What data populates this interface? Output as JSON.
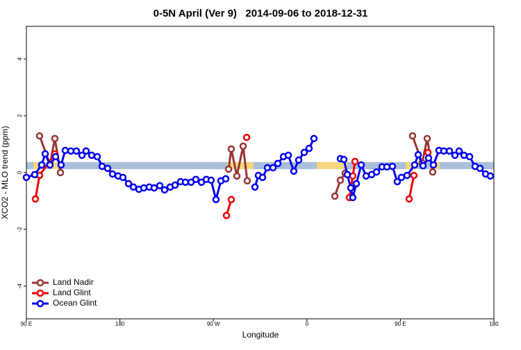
{
  "chart_data": {
    "type": "line",
    "title": "0-5N April (Ver 9)   2014-09-06 to 2018-12-31",
    "x_label": "Longitude",
    "y_label": "XCO2 - MLO trend (ppm)",
    "xlim": [
      90,
      540
    ],
    "xticks": [
      {
        "value": 90,
        "label": "90 E"
      },
      180,
      {
        "value": 270,
        "label": "90 W"
      },
      {
        "value": 360,
        "label": "0"
      },
      {
        "value": 450,
        "label": "90 E"
      },
      {
        "value": 540,
        "label": "180"
      }
    ],
    "ylim": [
      -5.15,
      5.15
    ],
    "yticks": [
      -4,
      -2,
      0,
      2,
      4
    ],
    "legend": "bottom-left",
    "band": {
      "ylim": [
        0.12,
        0.37
      ],
      "color": "#a9bfdc",
      "highlight_color": "#f5d77e",
      "highlights": [
        [
          96.7,
          103.4
        ],
        [
          114.7,
          121.4
        ],
        [
          283.2,
          308.6
        ],
        [
          369.5,
          398.9
        ],
        [
          455.0,
          465.8
        ],
        [
          479.1,
          487.8
        ]
      ]
    },
    "series": [
      {
        "name": "Land Nadir",
        "color": "#993333",
        "x": [
          102.7,
          112.7,
          117.4,
          122.8,
          200,
          284.6,
          287.2,
          292.6,
          298.6,
          302.6,
          350,
          386.9,
          392.2,
          396.9,
          430,
          461.7,
          470.9,
          475.8,
          481.1
        ],
        "values": [
          1.29,
          0.29,
          1.2,
          0.0,
          null,
          0.12,
          0.83,
          -0.12,
          0.93,
          -0.29,
          null,
          -0.83,
          -0.27,
          -0.02,
          null,
          1.29,
          0.34,
          1.2,
          0.02
        ]
      },
      {
        "name": "Land Glint",
        "color": "#ee0000",
        "x": [
          98.7,
          102.7,
          117.4,
          200,
          282.6,
          287.2,
          295,
          302.0,
          350,
          400.9,
          404.2,
          406.3,
          430,
          458.4,
          463.0,
          470,
          476.5
        ],
        "values": [
          -0.93,
          -0.1,
          0.66,
          null,
          -1.51,
          -0.95,
          null,
          1.24,
          null,
          -0.88,
          -0.12,
          0.39,
          null,
          -0.93,
          -0.1,
          null,
          0.71
        ]
      },
      {
        "name": "Ocean Glint",
        "color": "#0000ee",
        "x": [
          90.0,
          98.0,
          104.7,
          108.1,
          112.7,
          118.1,
          123.4,
          127.4,
          132.8,
          138.1,
          143.5,
          147.5,
          152.8,
          158.2,
          162.9,
          168.2,
          172.9,
          178.3,
          182.9,
          188.3,
          193.0,
          198.3,
          203.0,
          208.3,
          213.0,
          218.4,
          223.0,
          228.4,
          233.1,
          238.4,
          243.1,
          248.5,
          253.1,
          258.5,
          263.2,
          267.8,
          272.5,
          277.2,
          281.9,
          300,
          310.0,
          313.3,
          317.3,
          322.0,
          327.4,
          332.0,
          337.4,
          342.1,
          347.4,
          352.1,
          357.4,
          362.1,
          366.8,
          380,
          392.2,
          395.6,
          398.9,
          402.2,
          404.2,
          407.6,
          412.3,
          417.0,
          422.3,
          427.0,
          432.3,
          437.0,
          442.3,
          447.0,
          451.0,
          456.4,
          463.7,
          467.1,
          471.8,
          477.1,
          481.8,
          487.1,
          491.8,
          497.2,
          502.5,
          506.5,
          511.2,
          516.6,
          521.9,
          526.6,
          532.0,
          536.6
        ],
        "values": [
          -0.17,
          -0.07,
          0.27,
          0.66,
          0.27,
          0.56,
          0.27,
          0.78,
          0.76,
          0.76,
          0.61,
          0.76,
          0.61,
          0.56,
          0.22,
          0.15,
          -0.05,
          -0.12,
          -0.17,
          -0.39,
          -0.51,
          -0.59,
          -0.54,
          -0.51,
          -0.54,
          -0.46,
          -0.61,
          -0.51,
          -0.44,
          -0.32,
          -0.34,
          -0.34,
          -0.24,
          -0.34,
          -0.24,
          -0.27,
          -0.95,
          -0.29,
          -0.22,
          null,
          -0.51,
          -0.1,
          -0.17,
          0.17,
          0.17,
          0.32,
          0.56,
          0.61,
          0.05,
          0.44,
          0.71,
          0.85,
          1.2,
          null,
          0.49,
          0.46,
          -0.07,
          -0.54,
          -0.88,
          -0.39,
          0.27,
          -0.12,
          -0.07,
          0.02,
          0.2,
          0.2,
          0.22,
          -0.32,
          -0.17,
          -0.1,
          0.27,
          0.63,
          0.24,
          0.51,
          0.27,
          0.78,
          0.76,
          0.76,
          0.61,
          0.76,
          0.61,
          0.56,
          0.22,
          0.15,
          -0.05,
          -0.12
        ]
      }
    ]
  }
}
